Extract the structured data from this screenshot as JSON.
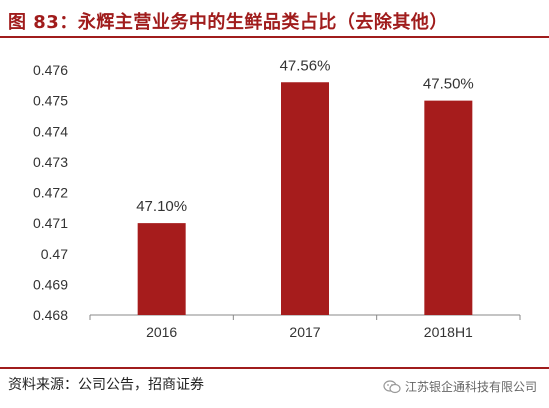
{
  "header": {
    "title": "图 83：永辉主营业务中的生鲜品类占比（去除其他）"
  },
  "footer": {
    "source": "资料来源：公司公告，招商证券",
    "watermark": "江苏银企通科技有限公司",
    "watermark_icon": "wechat-icon"
  },
  "colors": {
    "bar": "#a61c1c",
    "title": "#a01c1c",
    "axis": "#888888",
    "text": "#333333"
  },
  "chart_data": {
    "type": "bar",
    "title": "",
    "xlabel": "",
    "ylabel": "",
    "categories": [
      "2016",
      "2017",
      "2018H1"
    ],
    "values": [
      0.471,
      0.4756,
      0.475
    ],
    "data_labels": [
      "47.10%",
      "47.56%",
      "47.50%"
    ],
    "ylim": [
      0.468,
      0.476
    ],
    "yticks": [
      0.468,
      0.469,
      0.47,
      0.471,
      0.472,
      0.473,
      0.474,
      0.475,
      0.476
    ],
    "ytick_labels": [
      "0.468",
      "0.469",
      "0.47",
      "0.471",
      "0.472",
      "0.473",
      "0.474",
      "0.475",
      "0.476"
    ],
    "grid": false,
    "legend": "none"
  }
}
